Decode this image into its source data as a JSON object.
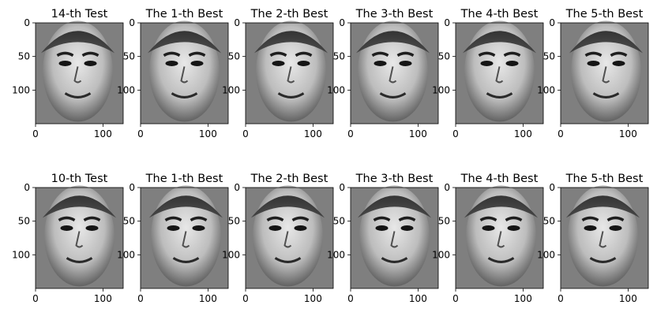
{
  "figure": {
    "rows": [
      {
        "panels": [
          {
            "title": "14-th Test"
          },
          {
            "title": "The 1-th Best"
          },
          {
            "title": "The 2-th Best"
          },
          {
            "title": "The 3-th Best"
          },
          {
            "title": "The 4-th Best"
          },
          {
            "title": "The 5-th Best"
          }
        ]
      },
      {
        "panels": [
          {
            "title": "10-th Test"
          },
          {
            "title": "The 1-th Best"
          },
          {
            "title": "The 2-th Best"
          },
          {
            "title": "The 3-th Best"
          },
          {
            "title": "The 4-th Best"
          },
          {
            "title": "The 5-th Best"
          }
        ]
      }
    ],
    "x_ticks": [
      "0",
      "100"
    ],
    "y_ticks": [
      "0",
      "50",
      "100"
    ],
    "image_width": 130,
    "image_height": 150,
    "background_gray": "#7f7f7f"
  }
}
